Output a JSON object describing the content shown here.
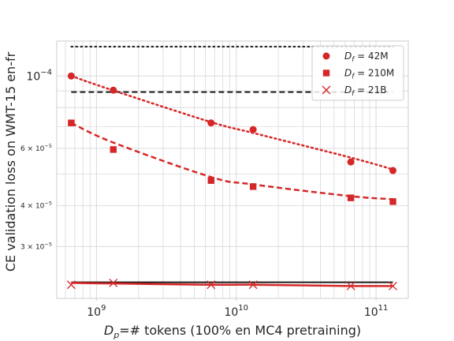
{
  "chart_data": {
    "type": "line",
    "xscale": "log",
    "yscale": "log",
    "xlabel_parts": {
      "pre": "D",
      "sub": "p",
      "post": "=# tokens (100% en MC4 pretraining)"
    },
    "ylabel": "CE validation loss on WMT-15 en-fr",
    "xlim": [
      520000000,
      170000000000
    ],
    "ylim": [
      2.08e-05,
      0.000128
    ],
    "x_ticks": [
      {
        "value": 1000000000,
        "base": "10",
        "exp": "9"
      },
      {
        "value": 10000000000,
        "base": "10",
        "exp": "10"
      },
      {
        "value": 100000000000,
        "base": "10",
        "exp": "11"
      }
    ],
    "y_major_ticks": [
      {
        "value": 0.0001,
        "base": "10",
        "exp": "−4"
      }
    ],
    "y_minor_ticks": [
      {
        "value": 6e-05,
        "mant": "6",
        "times": "×",
        "base": "10",
        "exp": "−5"
      },
      {
        "value": 4e-05,
        "mant": "4",
        "times": "×",
        "base": "10",
        "exp": "−5"
      },
      {
        "value": 3e-05,
        "mant": "3",
        "times": "×",
        "base": "10",
        "exp": "−5"
      }
    ],
    "grid": true,
    "legend_position": "top-right",
    "x": [
      660000000,
      1320000000,
      6600000000,
      13200000000,
      66000000000,
      132000000000
    ],
    "series": [
      {
        "name_parts": {
          "pre": "D",
          "sub": "f",
          "post": " = 42M"
        },
        "marker": "circle",
        "color": "#d62728",
        "values": [
          0.0001,
          9.05e-05,
          7.18e-05,
          6.85e-05,
          5.45e-05,
          5.13e-05
        ],
        "fit_style": "dotted",
        "fit": [
          0.0001,
          9.03e-05,
          7.22e-05,
          6.69e-05,
          5.62e-05,
          5.17e-05
        ],
        "baseline_style": "dotted",
        "baseline": 0.000123
      },
      {
        "name_parts": {
          "pre": "D",
          "sub": "f",
          "post": " = 210M"
        },
        "marker": "square",
        "color": "#d62728",
        "values": [
          7.18e-05,
          5.95e-05,
          4.78e-05,
          4.58e-05,
          4.23e-05,
          4.12e-05
        ],
        "fit_style": "dashed",
        "fit": [
          7.18e-05,
          6.25e-05,
          4.9e-05,
          4.65e-05,
          4.28e-05,
          4.19e-05
        ],
        "baseline_style": "dashed",
        "baseline": 8.93e-05
      },
      {
        "name_parts": {
          "pre": "D",
          "sub": "f",
          "post": " = 21B"
        },
        "marker": "x",
        "color": "#d62728",
        "values": [
          2.29e-05,
          2.32e-05,
          2.29e-05,
          2.29e-05,
          2.27e-05,
          2.27e-05
        ],
        "fit_style": "solid",
        "fit": [
          2.32e-05,
          2.31e-05,
          2.29e-05,
          2.29e-05,
          2.27e-05,
          2.27e-05
        ],
        "baseline_style": "solid",
        "baseline": 2.33e-05
      }
    ],
    "baseline_color": "#1a1a1a"
  }
}
